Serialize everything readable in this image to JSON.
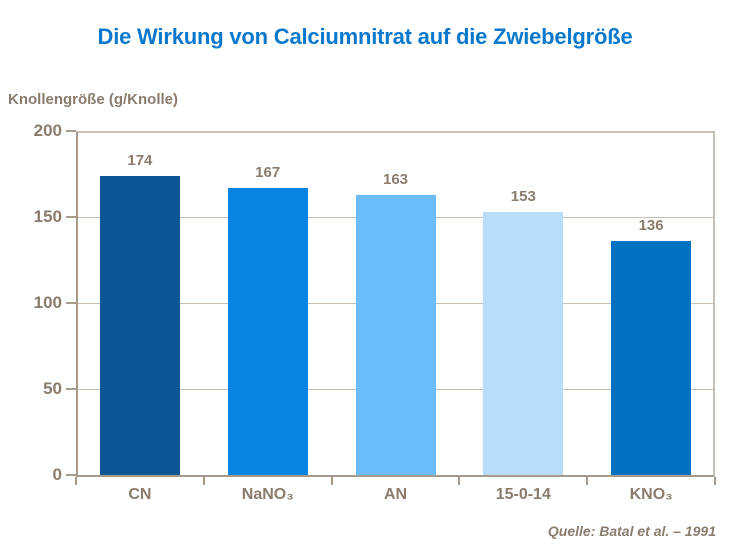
{
  "title": "Die Wirkung von Calciumnitrat auf die Zwiebelgröße",
  "y_axis_label": "Knollengröße (g/Knolle)",
  "source": "Quelle: Batal et al. – 1991",
  "colors": {
    "title_blue": "#0a78cc",
    "label_brown": "#8a7c6c",
    "axis_line": "#a69a8d",
    "gridline": "#c9bfb4",
    "background": "#ffffff"
  },
  "chart_data": {
    "type": "bar",
    "title": "Die Wirkung von Calciumnitrat auf die Zwiebelgröße",
    "categories": [
      "CN",
      "NaNO₃",
      "AN",
      "15-0-14",
      "KNO₃"
    ],
    "values": [
      174,
      167,
      163,
      153,
      136
    ],
    "bar_colors": [
      "#0b5796",
      "#0884e2",
      "#6bbcfb",
      "#b8ddfb",
      "#0070c0"
    ],
    "xlabel": "",
    "ylabel": "Knollengröße (g/Knolle)",
    "ylim": [
      0,
      200
    ],
    "yticks": [
      0,
      50,
      100,
      150,
      200
    ],
    "grid": true,
    "data_labels": true,
    "legend": "none"
  }
}
